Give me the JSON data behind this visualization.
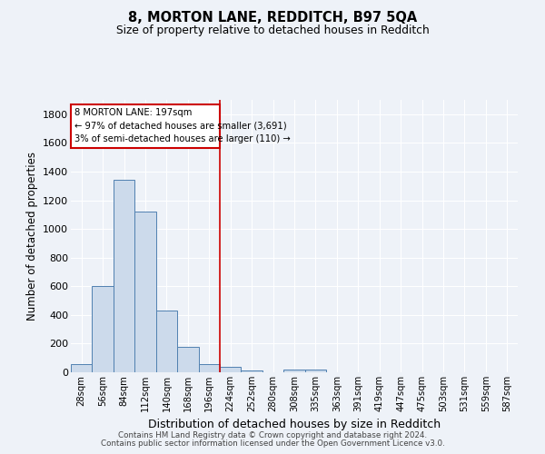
{
  "title": "8, MORTON LANE, REDDITCH, B97 5QA",
  "subtitle": "Size of property relative to detached houses in Redditch",
  "xlabel": "Distribution of detached houses by size in Redditch",
  "ylabel": "Number of detached properties",
  "bar_categories": [
    "28sqm",
    "56sqm",
    "84sqm",
    "112sqm",
    "140sqm",
    "168sqm",
    "196sqm",
    "224sqm",
    "252sqm",
    "280sqm",
    "308sqm",
    "335sqm",
    "363sqm",
    "391sqm",
    "419sqm",
    "447sqm",
    "475sqm",
    "503sqm",
    "531sqm",
    "559sqm",
    "587sqm"
  ],
  "bar_values": [
    60,
    600,
    1340,
    1120,
    430,
    175,
    60,
    40,
    15,
    0,
    20,
    20,
    0,
    0,
    0,
    0,
    0,
    0,
    0,
    0,
    0
  ],
  "bar_color": "#ccdaeb",
  "bar_edge_color": "#5080b0",
  "vline_color": "#cc0000",
  "annotation_box_text_line1": "8 MORTON LANE: 197sqm",
  "annotation_box_text_line2": "← 97% of detached houses are smaller (3,691)",
  "annotation_box_text_line3": "3% of semi-detached houses are larger (110) →",
  "annotation_color": "#cc0000",
  "background_color": "#eef2f8",
  "grid_color": "#d8dfe8",
  "ylim": [
    0,
    1900
  ],
  "yticks": [
    0,
    200,
    400,
    600,
    800,
    1000,
    1200,
    1400,
    1600,
    1800
  ],
  "footer_line1": "Contains HM Land Registry data © Crown copyright and database right 2024.",
  "footer_line2": "Contains public sector information licensed under the Open Government Licence v3.0."
}
